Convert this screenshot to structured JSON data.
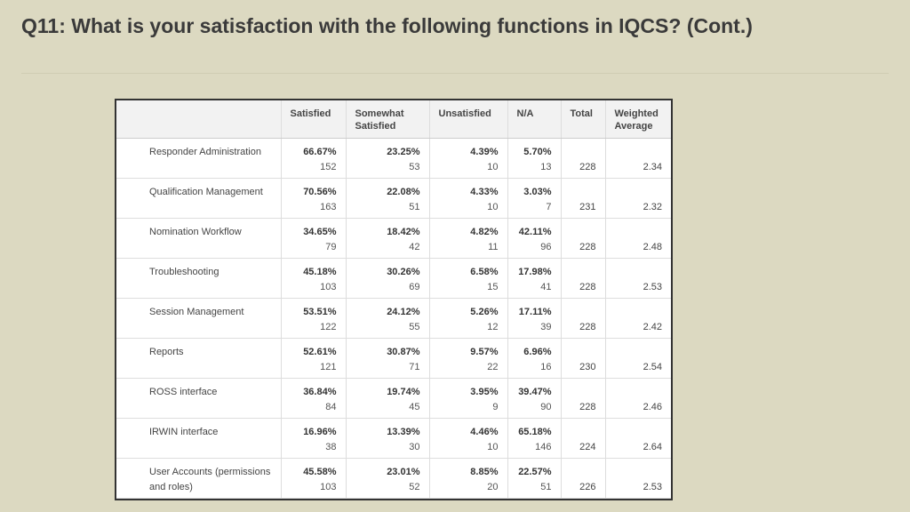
{
  "header": {
    "title": "Q11: What is your satisfaction with the following functions in IQCS? (Cont.)"
  },
  "table": {
    "columns": [
      "Satisfied",
      "Somewhat Satisfied",
      "Unsatisfied",
      "N/A",
      "Total",
      "Weighted Average"
    ],
    "rows": [
      {
        "label": "Responder Administration",
        "cells": [
          {
            "percent": "66.67%",
            "count": 152
          },
          {
            "percent": "23.25%",
            "count": 53
          },
          {
            "percent": "4.39%",
            "count": 10
          },
          {
            "percent": "5.70%",
            "count": 13
          }
        ],
        "total": 228,
        "weighted_average": 2.34
      },
      {
        "label": "Qualification Management",
        "cells": [
          {
            "percent": "70.56%",
            "count": 163
          },
          {
            "percent": "22.08%",
            "count": 51
          },
          {
            "percent": "4.33%",
            "count": 10
          },
          {
            "percent": "3.03%",
            "count": 7
          }
        ],
        "total": 231,
        "weighted_average": 2.32
      },
      {
        "label": "Nomination Workflow",
        "cells": [
          {
            "percent": "34.65%",
            "count": 79
          },
          {
            "percent": "18.42%",
            "count": 42
          },
          {
            "percent": "4.82%",
            "count": 11
          },
          {
            "percent": "42.11%",
            "count": 96
          }
        ],
        "total": 228,
        "weighted_average": 2.48
      },
      {
        "label": "Troubleshooting",
        "cells": [
          {
            "percent": "45.18%",
            "count": 103
          },
          {
            "percent": "30.26%",
            "count": 69
          },
          {
            "percent": "6.58%",
            "count": 15
          },
          {
            "percent": "17.98%",
            "count": 41
          }
        ],
        "total": 228,
        "weighted_average": 2.53
      },
      {
        "label": "Session Management",
        "cells": [
          {
            "percent": "53.51%",
            "count": 122
          },
          {
            "percent": "24.12%",
            "count": 55
          },
          {
            "percent": "5.26%",
            "count": 12
          },
          {
            "percent": "17.11%",
            "count": 39
          }
        ],
        "total": 228,
        "weighted_average": 2.42
      },
      {
        "label": "Reports",
        "cells": [
          {
            "percent": "52.61%",
            "count": 121
          },
          {
            "percent": "30.87%",
            "count": 71
          },
          {
            "percent": "9.57%",
            "count": 22
          },
          {
            "percent": "6.96%",
            "count": 16
          }
        ],
        "total": 230,
        "weighted_average": 2.54
      },
      {
        "label": "ROSS interface",
        "cells": [
          {
            "percent": "36.84%",
            "count": 84
          },
          {
            "percent": "19.74%",
            "count": 45
          },
          {
            "percent": "3.95%",
            "count": 9
          },
          {
            "percent": "39.47%",
            "count": 90
          }
        ],
        "total": 228,
        "weighted_average": 2.46
      },
      {
        "label": "IRWIN interface",
        "cells": [
          {
            "percent": "16.96%",
            "count": 38
          },
          {
            "percent": "13.39%",
            "count": 30
          },
          {
            "percent": "4.46%",
            "count": 10
          },
          {
            "percent": "65.18%",
            "count": 146
          }
        ],
        "total": 224,
        "weighted_average": 2.64
      },
      {
        "label": "User Accounts (permissions and roles)",
        "cells": [
          {
            "percent": "45.58%",
            "count": 103
          },
          {
            "percent": "23.01%",
            "count": 52
          },
          {
            "percent": "8.85%",
            "count": 20
          },
          {
            "percent": "22.57%",
            "count": 51
          }
        ],
        "total": 226,
        "weighted_average": 2.53
      }
    ]
  }
}
